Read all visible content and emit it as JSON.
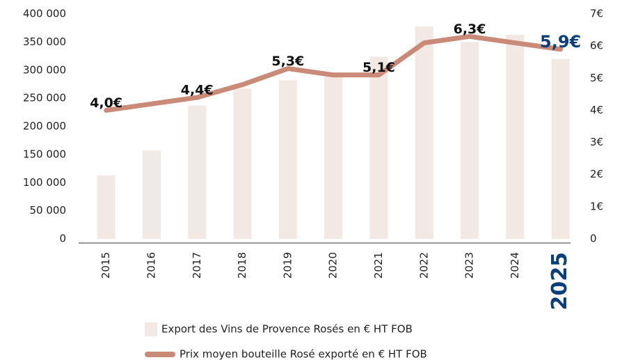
{
  "chart_data": {
    "type": "bar_line",
    "categories": [
      "2015",
      "2016",
      "2017",
      "2018",
      "2019",
      "2020",
      "2021",
      "2022",
      "2023",
      "2024",
      "2025"
    ],
    "series": [
      {
        "name": "Export des Vins de Provence Rosés en € HT FOB",
        "type": "bar",
        "color": "#f2e8e4",
        "values": [
          113000,
          157000,
          237000,
          267000,
          282000,
          292000,
          324000,
          378000,
          350000,
          363000,
          320000
        ]
      },
      {
        "name": "Prix moyen bouteille Rosé exporté en € HT FOB",
        "type": "line",
        "axis": "y2",
        "color": "#c98a78",
        "values": [
          4.0,
          4.2,
          4.4,
          4.8,
          5.3,
          5.1,
          5.1,
          6.1,
          6.3,
          6.1,
          5.9
        ],
        "value_labels": [
          "4,0€",
          null,
          "4,4€",
          null,
          "5,3€",
          null,
          "5,1€",
          null,
          "6,3€",
          null,
          "5,9€"
        ]
      }
    ],
    "highlight_color": "#0d3e7c",
    "ylim": [
      0,
      400000
    ],
    "yticks": [
      0,
      {
        "value": 50000,
        "label": "50 000"
      },
      {
        "value": 100000,
        "label": "100 000"
      },
      {
        "value": 150000,
        "label": "150 000"
      },
      {
        "value": 200000,
        "label": "200 000"
      },
      {
        "value": 250000,
        "label": "250 000"
      },
      {
        "value": 300000,
        "label": "300 000"
      },
      {
        "value": 350000,
        "label": "350 000"
      },
      {
        "value": 400000,
        "label": "400 000"
      }
    ],
    "y2lim": [
      0,
      7
    ],
    "y2ticks": [
      0,
      {
        "value": 1,
        "label": "1€"
      },
      {
        "value": 2,
        "label": "2€"
      },
      {
        "value": 3,
        "label": "3€"
      },
      {
        "value": 4,
        "label": "4€"
      },
      {
        "value": 5,
        "label": "5€"
      },
      {
        "value": 6,
        "label": "6€"
      },
      {
        "value": 7,
        "label": "7€"
      }
    ],
    "legend": "bottom"
  }
}
